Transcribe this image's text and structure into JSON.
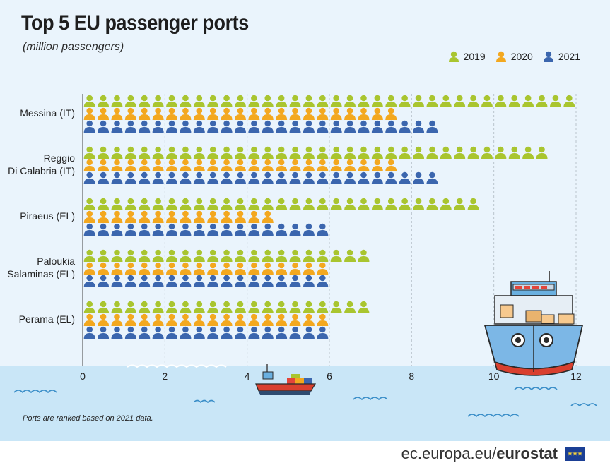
{
  "header": {
    "title": "Top 5 EU passenger ports",
    "subtitle": "(million passengers)"
  },
  "legend": [
    {
      "label": "2019",
      "color": "#a9c52f"
    },
    {
      "label": "2020",
      "color": "#f3a81f"
    },
    {
      "label": "2021",
      "color": "#3b66ae"
    }
  ],
  "footnote": "Ports are ranked based on 2021 data.",
  "footer": {
    "domain": "ec.europa.eu/",
    "brand": "eurostat"
  },
  "chart_data": {
    "type": "bar",
    "orientation": "horizontal",
    "unit": "million passengers",
    "categories": [
      "Messina (IT)",
      "Reggio Di Calabria (IT)",
      "Piraeus (EL)",
      "Paloukia Salaminas (EL)",
      "Perama (EL)"
    ],
    "category_lines": [
      [
        "Messina (IT)"
      ],
      [
        "Reggio",
        "Di Calabria (IT)"
      ],
      [
        "Piraeus (EL)"
      ],
      [
        "Paloukia",
        "Salaminas (EL)"
      ],
      [
        "Perama (EL)"
      ]
    ],
    "series": [
      {
        "name": "2019",
        "color": "#a9c52f",
        "values": [
          11.9,
          11.3,
          9.5,
          7.0,
          7.0
        ]
      },
      {
        "name": "2020",
        "color": "#f3a81f",
        "values": [
          7.8,
          7.8,
          4.6,
          6.0,
          6.0
        ]
      },
      {
        "name": "2021",
        "color": "#3b66ae",
        "values": [
          8.5,
          8.5,
          6.0,
          6.0,
          6.0
        ]
      }
    ],
    "xlim": [
      0,
      12
    ],
    "xticks": [
      "0",
      "2",
      "4",
      "6",
      "8",
      "10",
      "12"
    ],
    "grid": true,
    "legend_position": "top-right"
  }
}
